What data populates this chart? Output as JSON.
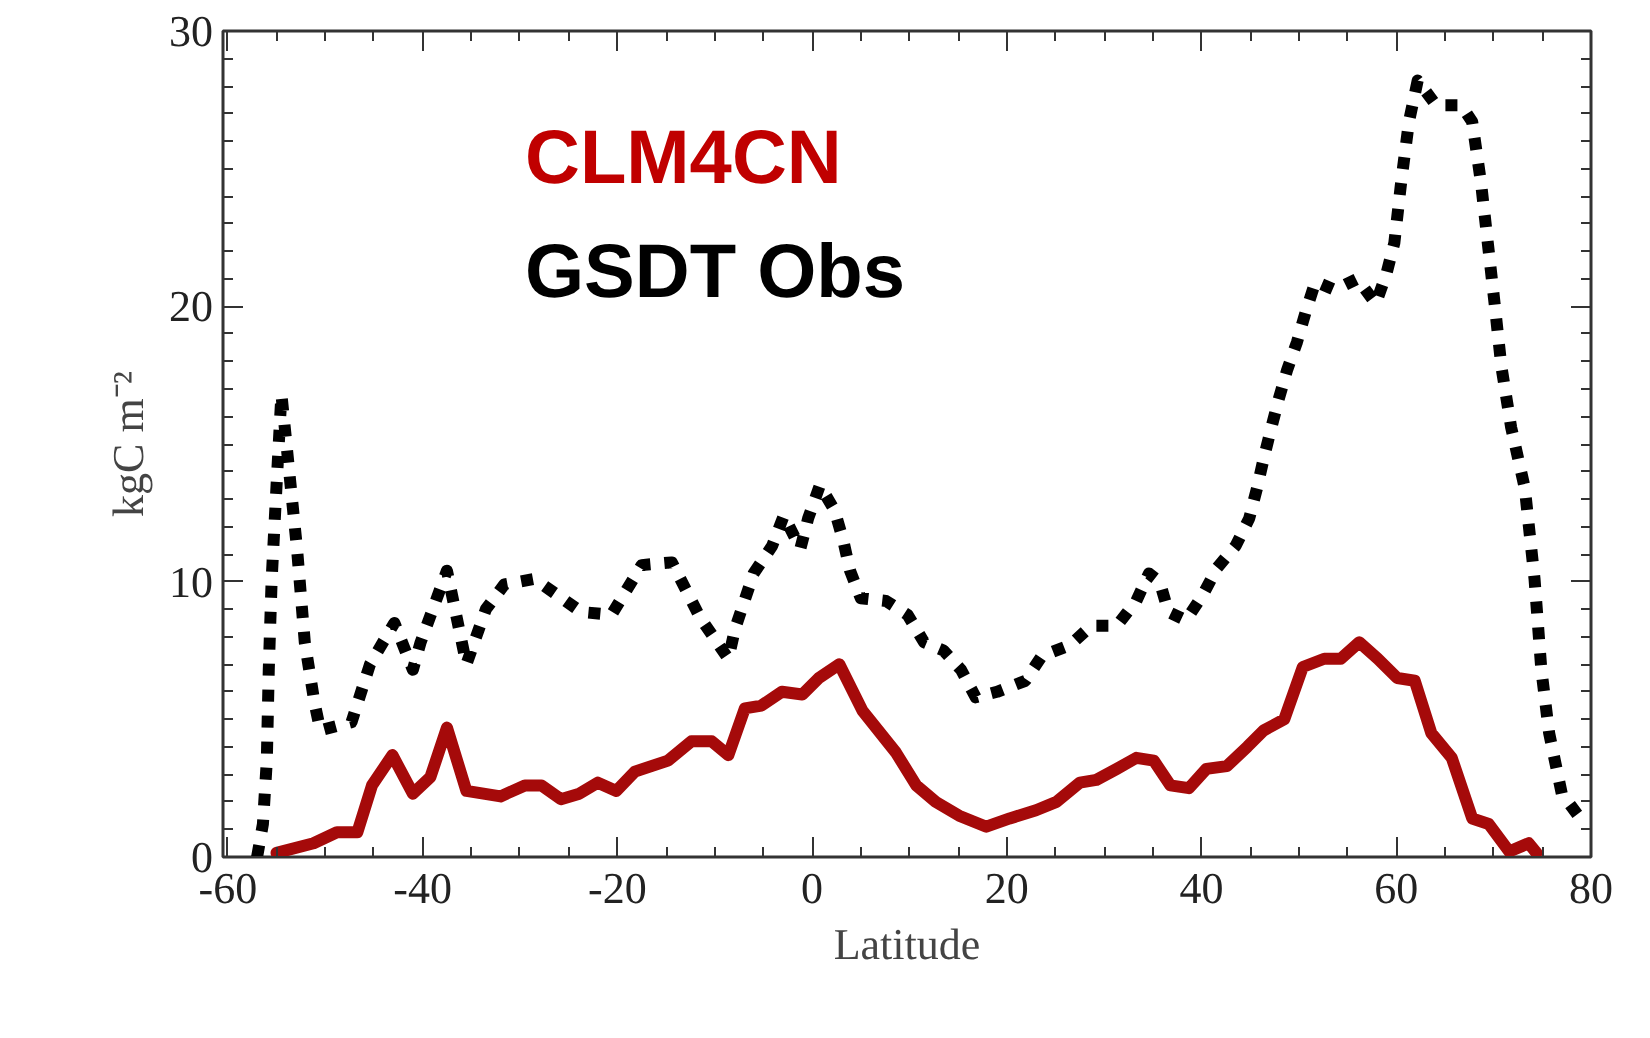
{
  "chart_data": {
    "type": "line",
    "xlabel": "Latitude",
    "ylabel": "kgC m⁻²",
    "xlim": [
      -60.5,
      80
    ],
    "ylim": [
      0,
      30
    ],
    "xticks": [
      -60,
      -40,
      -20,
      0,
      20,
      40,
      60,
      80
    ],
    "yticks": [
      0,
      10,
      20,
      30
    ],
    "grid": false,
    "legend": false,
    "series": [
      {
        "name": "CLM4CN",
        "color": "#a50a0a",
        "line_style": "solid",
        "x": [
          -55.0,
          -51.2,
          -48.8,
          -46.7,
          -45.2,
          -43.1,
          -41.0,
          -39.2,
          -37.5,
          -35.5,
          -32.0,
          -29.5,
          -27.8,
          -25.8,
          -23.9,
          -22.0,
          -20.1,
          -18.2,
          -14.8,
          -12.4,
          -10.3,
          -8.6,
          -6.9,
          -5.2,
          -3.1,
          -1.0,
          0.7,
          2.8,
          5.2,
          8.6,
          10.7,
          12.7,
          15.1,
          17.9,
          20.3,
          23.0,
          25.1,
          27.5,
          29.2,
          31.3,
          33.3,
          35.1,
          36.8,
          38.7,
          40.5,
          42.6,
          44.7,
          46.4,
          48.5,
          50.4,
          52.6,
          54.3,
          56.2,
          58.1,
          60.1,
          61.9,
          63.6,
          65.7,
          67.8,
          69.5,
          71.6,
          73.6,
          74.4
        ],
        "values": [
          0.15,
          0.5,
          0.9,
          0.9,
          2.6,
          3.7,
          2.3,
          2.9,
          4.7,
          2.4,
          2.2,
          2.6,
          2.6,
          2.1,
          2.3,
          2.7,
          2.4,
          3.1,
          3.5,
          4.2,
          4.2,
          3.7,
          5.4,
          5.5,
          6.0,
          5.9,
          6.5,
          7.0,
          5.3,
          3.8,
          2.6,
          2.0,
          1.5,
          1.1,
          1.4,
          1.7,
          2.0,
          2.7,
          2.8,
          3.2,
          3.6,
          3.5,
          2.6,
          2.5,
          3.2,
          3.3,
          4.0,
          4.6,
          5.0,
          6.9,
          7.2,
          7.2,
          7.8,
          7.2,
          6.5,
          6.4,
          4.5,
          3.6,
          1.4,
          1.2,
          0.2,
          0.5,
          0.15
        ]
      },
      {
        "name": "GSDT Obs",
        "color": "#000000",
        "line_style": "dotted",
        "x": [
          -57.0,
          -56.4,
          -56.0,
          -55.8,
          -55.5,
          -55.0,
          -54.5,
          -52.9,
          -52.1,
          -51.1,
          -50.5,
          -47.3,
          -45.4,
          -42.9,
          -41.0,
          -40.2,
          -37.5,
          -35.5,
          -33.5,
          -31.6,
          -28.5,
          -26.1,
          -23.7,
          -20.6,
          -17.5,
          -14.4,
          -11.5,
          -8.6,
          -7.9,
          -6.0,
          -4.1,
          -2.9,
          -1.2,
          -0.4,
          0.8,
          2.3,
          3.2,
          3.9,
          5.0,
          7.6,
          9.8,
          11.5,
          13.5,
          15.3,
          16.8,
          19.0,
          21.9,
          23.6,
          26.5,
          28.7,
          31.3,
          33.3,
          34.6,
          35.7,
          36.6,
          38.4,
          40.1,
          41.6,
          43.5,
          44.9,
          45.7,
          46.4,
          47.1,
          47.9,
          48.8,
          49.8,
          50.7,
          51.7,
          53.7,
          56.0,
          57.9,
          59.0,
          59.8,
          60.5,
          61.3,
          62.2,
          64.1,
          66.7,
          67.8,
          68.7,
          69.4,
          70.1,
          70.8,
          71.8,
          73.2,
          74.2,
          74.9,
          75.7,
          77.0,
          78.7
        ],
        "values": [
          0.0,
          1.2,
          3.5,
          6.8,
          10.1,
          13.5,
          16.8,
          11.2,
          7.8,
          5.6,
          4.6,
          4.9,
          7.0,
          8.5,
          6.8,
          7.8,
          10.4,
          7.0,
          9.0,
          9.9,
          10.1,
          9.5,
          8.9,
          8.8,
          10.6,
          10.7,
          8.7,
          7.2,
          8.3,
          10.3,
          11.3,
          12.4,
          11.2,
          12.3,
          13.5,
          12.6,
          11.5,
          10.4,
          9.4,
          9.3,
          8.8,
          7.8,
          7.5,
          6.8,
          5.8,
          6.0,
          6.4,
          7.3,
          7.7,
          8.4,
          8.4,
          9.3,
          10.3,
          10.0,
          8.9,
          8.6,
          9.5,
          10.5,
          11.3,
          12.3,
          13.4,
          14.5,
          15.5,
          16.6,
          17.7,
          18.7,
          19.8,
          20.9,
          20.6,
          21.0,
          20.1,
          21.2,
          22.3,
          24.5,
          26.7,
          28.2,
          27.3,
          27.3,
          26.7,
          24.5,
          22.3,
          20.1,
          17.8,
          15.6,
          13.4,
          10.1,
          6.8,
          4.5,
          2.3,
          1.5
        ]
      }
    ]
  }
}
